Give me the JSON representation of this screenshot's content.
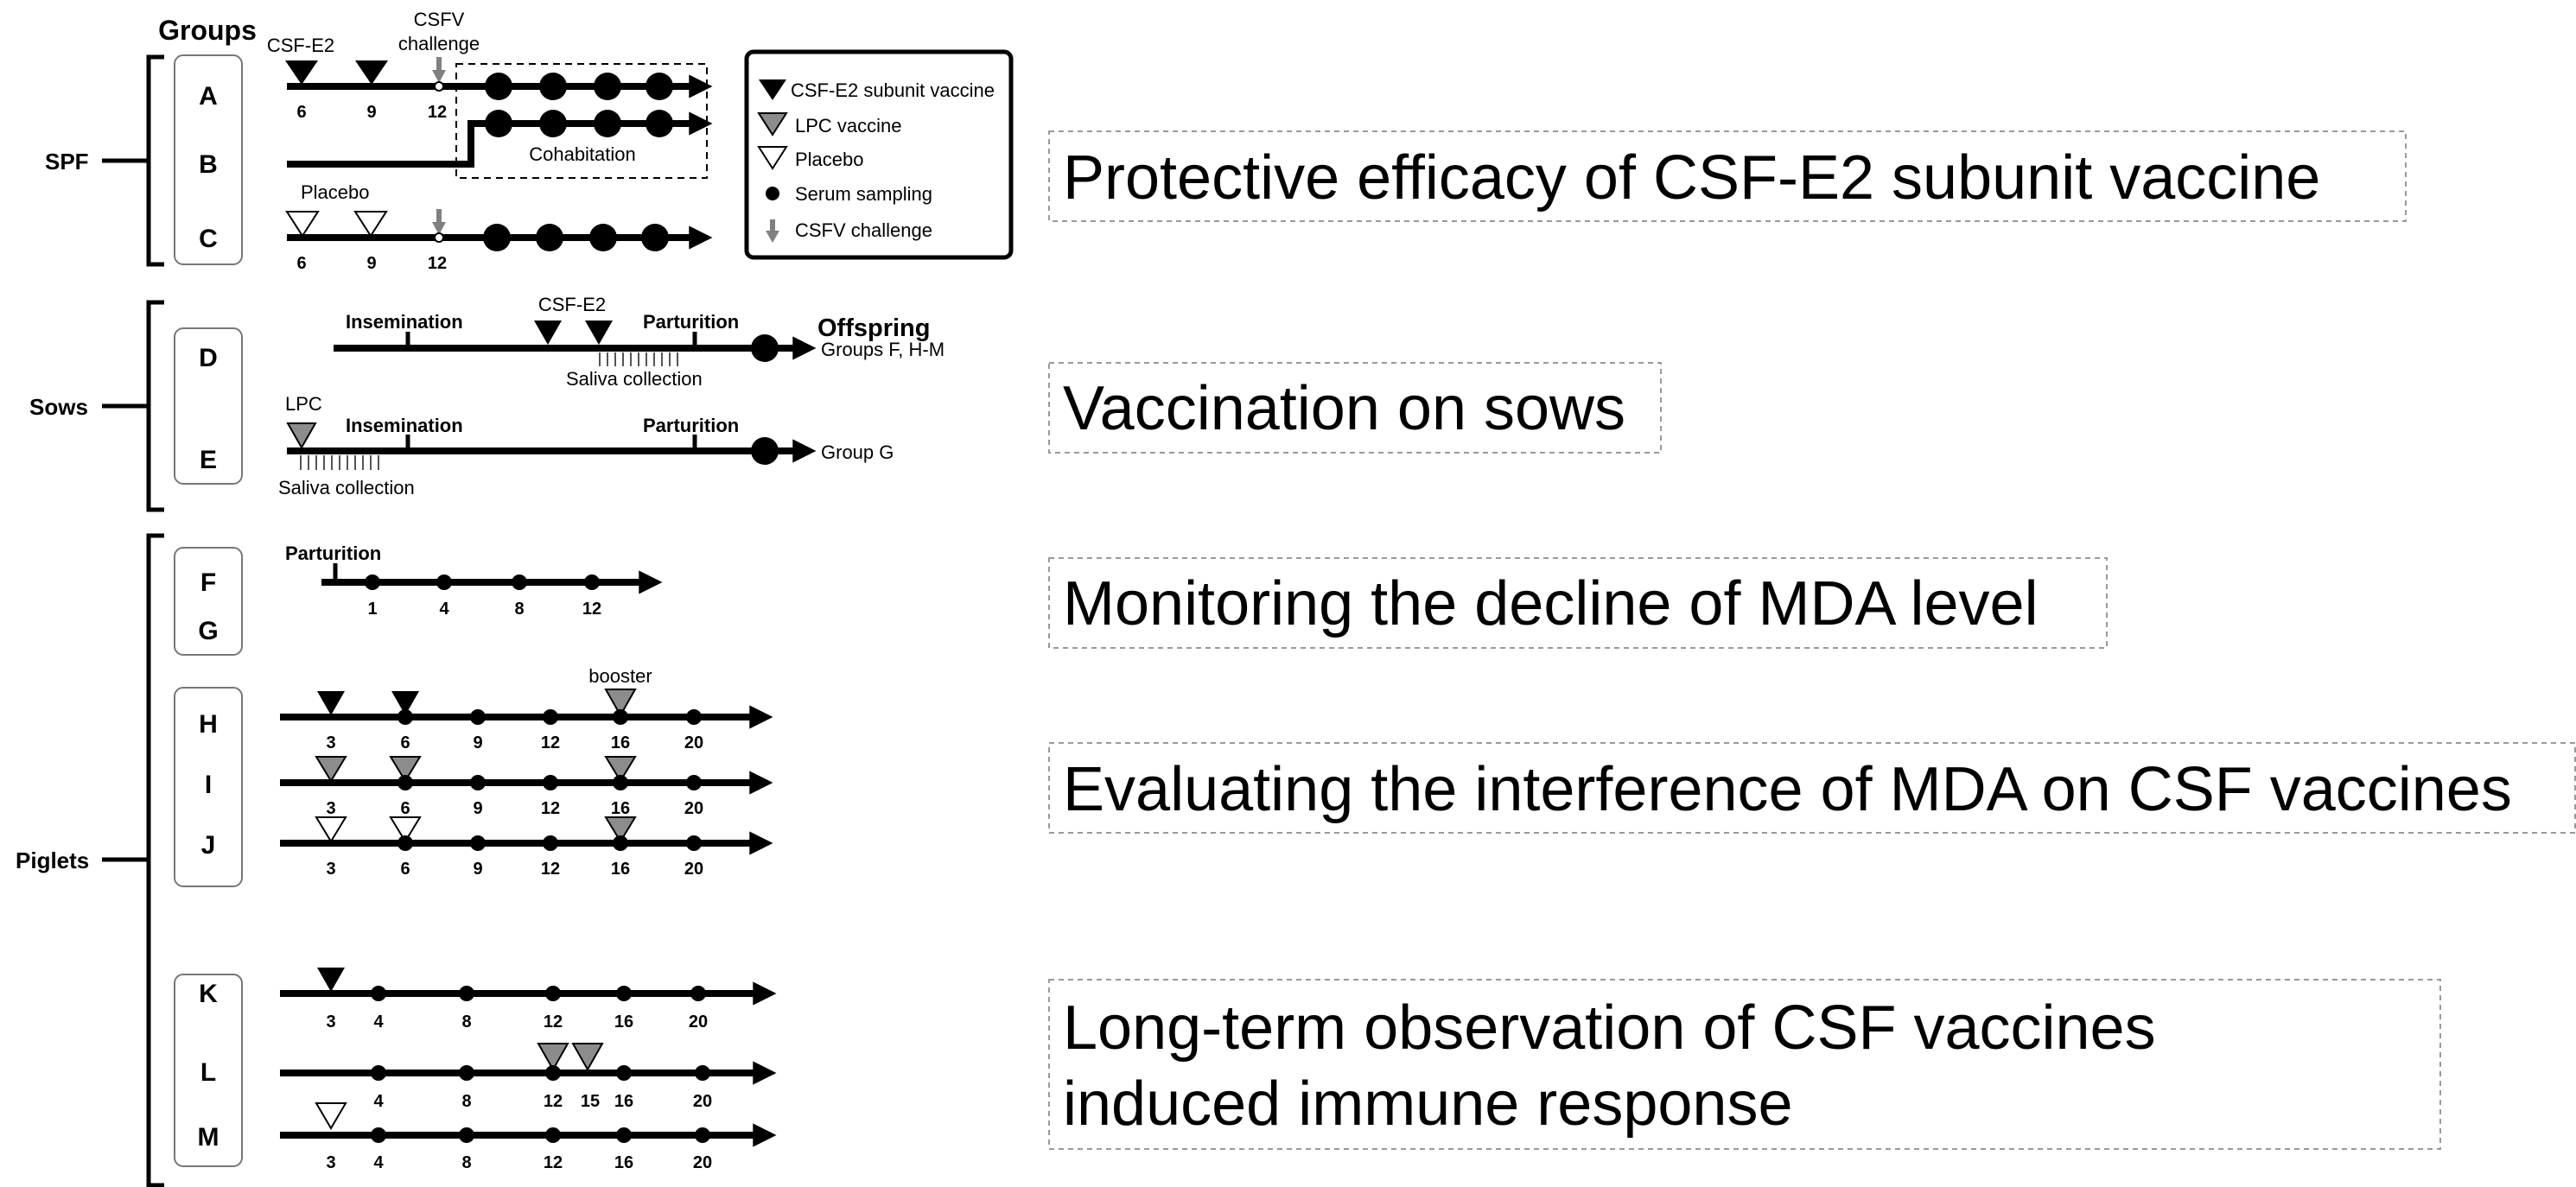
{
  "header": {
    "groups": "Groups"
  },
  "sections": {
    "spf": "SPF",
    "sows": "Sows",
    "piglets": "Piglets"
  },
  "groups": [
    "A",
    "B",
    "C",
    "D",
    "E",
    "F",
    "G",
    "H",
    "I",
    "J",
    "K",
    "L",
    "M"
  ],
  "legend": {
    "subunit": "CSF-E2 subunit vaccine",
    "lpc": "LPC vaccine",
    "placebo": "Placebo",
    "serum": "Serum sampling",
    "challenge": "CSFV challenge"
  },
  "spf": {
    "csf_e2": "CSF-E2",
    "challenge_l1": "CSFV",
    "challenge_l2": "challenge",
    "placebo": "Placebo",
    "cohab": "Cohabitation",
    "ticksA": [
      "6",
      "9",
      "12"
    ],
    "ticksC": [
      "6",
      "9",
      "12"
    ]
  },
  "sows": {
    "insem": "Insemination",
    "csf_e2": "CSF-E2",
    "partur": "Parturition",
    "offspring": "Offspring",
    "groups_to": "Groups  F, H-M",
    "saliva": "Saliva collection",
    "lpc": "LPC",
    "group_g": "Group G"
  },
  "piglets": {
    "partur": "Parturition",
    "ticksFG": [
      "1",
      "4",
      "8",
      "12"
    ],
    "booster": "booster",
    "ticksHIJ": [
      "3",
      "6",
      "9",
      "12",
      "16",
      "20"
    ],
    "ticksK": [
      "3",
      "4",
      "8",
      "12",
      "16",
      "20"
    ],
    "ticksL": [
      "4",
      "8",
      "12",
      "15",
      "16",
      "20"
    ],
    "ticksM": [
      "3",
      "4",
      "8",
      "12",
      "16",
      "20"
    ]
  },
  "panels": {
    "p1": "Protective efficacy of CSF-E2 subunit vaccine",
    "p2": "Vaccination on sows",
    "p3": "Monitoring the decline of MDA level",
    "p4": "Evaluating the interference of MDA on CSF vaccines",
    "p5_l1": "Long-term observation of CSF vaccines",
    "p5_l2": "induced immune response"
  }
}
